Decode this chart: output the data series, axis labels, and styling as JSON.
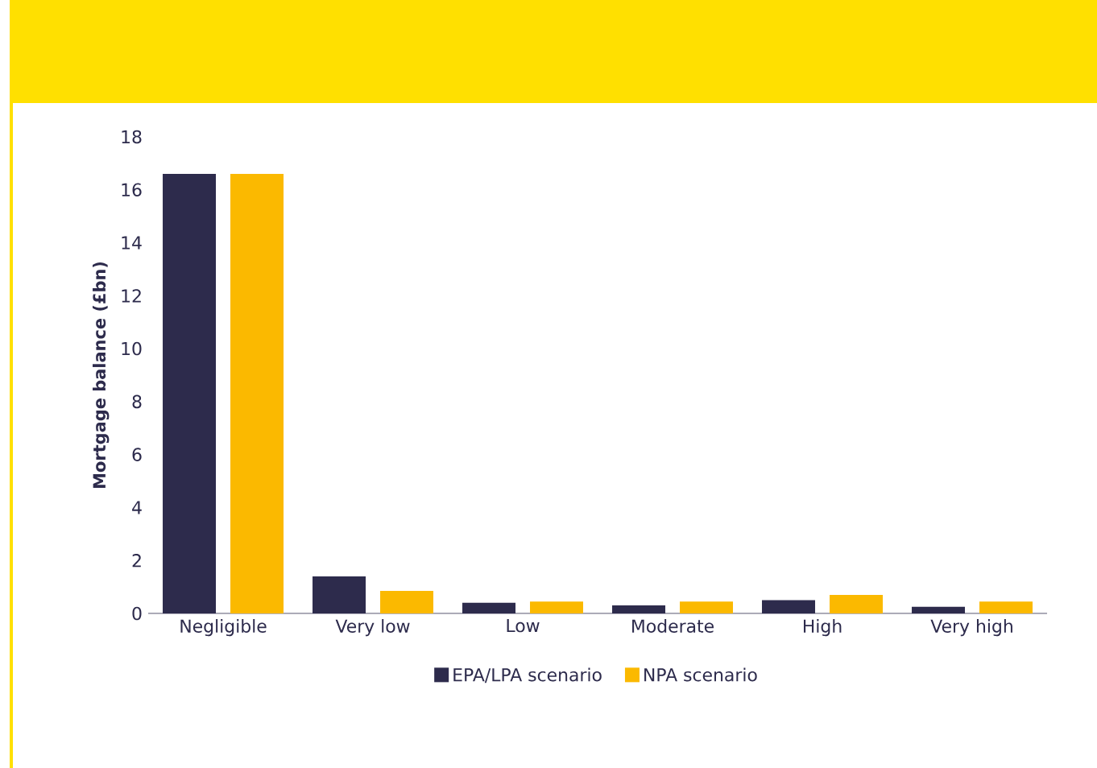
{
  "chart_data": {
    "type": "bar",
    "ylabel": "Mortgage balance (£bn)",
    "categories": [
      "Negligible",
      "Very low",
      "Low",
      "Moderate",
      "High",
      "Very high"
    ],
    "series": [
      {
        "name": "EPA/LPA scenario",
        "color": "#2d2b4c",
        "values": [
          16.6,
          1.4,
          0.4,
          0.3,
          0.5,
          0.25
        ]
      },
      {
        "name": "NPA scenario",
        "color": "#fbb900",
        "values": [
          16.6,
          0.85,
          0.45,
          0.45,
          0.7,
          0.45
        ]
      }
    ],
    "ylim": [
      0,
      18
    ],
    "yticks": [
      0,
      2,
      4,
      6,
      8,
      10,
      12,
      14,
      16,
      18
    ],
    "grid": false,
    "legend": "bottom"
  }
}
